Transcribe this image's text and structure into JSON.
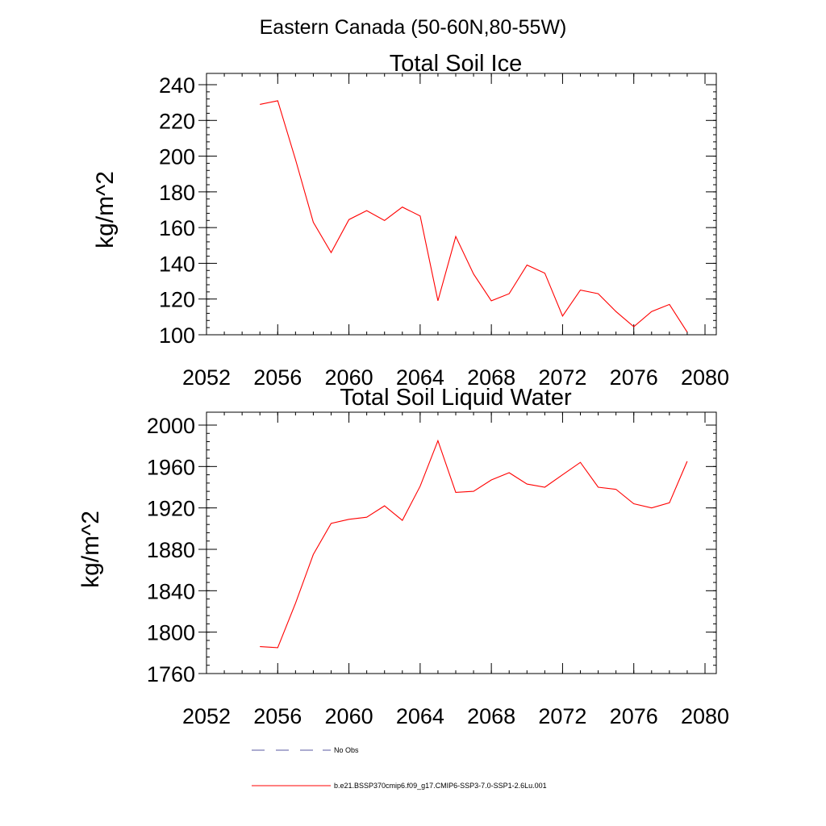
{
  "figure_title": "Eastern Canada (50-60N,80-55W)",
  "colors": {
    "series": "#ff0000",
    "obs": "#5a5aa0",
    "axis": "#000000"
  },
  "legend": {
    "obs_label": "No Obs",
    "model_label": "b.e21.BSSP370cmip6.f09_g17.CMIP6-SSP3-7.0-SSP1-2.6Lu.001"
  },
  "chart_data": [
    {
      "type": "line",
      "title": "Total Soil Ice",
      "xlabel": "",
      "ylabel": "kg/m^2",
      "xlim": [
        2052,
        2080
      ],
      "ylim": [
        100,
        240
      ],
      "xticks": [
        2052,
        2056,
        2060,
        2064,
        2068,
        2072,
        2076,
        2080
      ],
      "yticks": [
        100,
        120,
        140,
        160,
        180,
        200,
        220,
        240
      ],
      "series": [
        {
          "name": "b.e21.BSSP370cmip6.f09_g17.CMIP6-SSP3-7.0-SSP1-2.6Lu.001",
          "x": [
            2055,
            2056,
            2057,
            2058,
            2059,
            2060,
            2061,
            2062,
            2063,
            2064,
            2065,
            2066,
            2067,
            2068,
            2069,
            2070,
            2071,
            2072,
            2073,
            2074,
            2075,
            2076,
            2077,
            2078,
            2079
          ],
          "y": [
            229,
            231,
            198,
            163,
            146,
            164.5,
            169.5,
            164,
            171.5,
            166.5,
            119,
            155,
            134,
            119,
            123,
            139,
            134.5,
            110.5,
            125,
            123,
            113,
            104.5,
            113,
            117,
            101.5
          ]
        }
      ]
    },
    {
      "type": "line",
      "title": "Total Soil Liquid Water",
      "xlabel": "",
      "ylabel": "kg/m^2",
      "xlim": [
        2052,
        2080
      ],
      "ylim": [
        1760,
        2000
      ],
      "xticks": [
        2052,
        2056,
        2060,
        2064,
        2068,
        2072,
        2076,
        2080
      ],
      "yticks": [
        1760,
        1800,
        1840,
        1880,
        1920,
        1960,
        2000
      ],
      "series": [
        {
          "name": "b.e21.BSSP370cmip6.f09_g17.CMIP6-SSP3-7.0-SSP1-2.6Lu.001",
          "x": [
            2055,
            2056,
            2057,
            2058,
            2059,
            2060,
            2061,
            2062,
            2063,
            2064,
            2065,
            2066,
            2067,
            2068,
            2069,
            2070,
            2071,
            2072,
            2073,
            2074,
            2075,
            2076,
            2077,
            2078,
            2079
          ],
          "y": [
            1786,
            1785,
            1828,
            1875,
            1905,
            1909,
            1911,
            1922,
            1908,
            1941,
            1985,
            1935,
            1936,
            1947,
            1954,
            1943,
            1940,
            1952,
            1964,
            1940,
            1938,
            1924,
            1920,
            1925,
            1965
          ]
        }
      ]
    }
  ]
}
